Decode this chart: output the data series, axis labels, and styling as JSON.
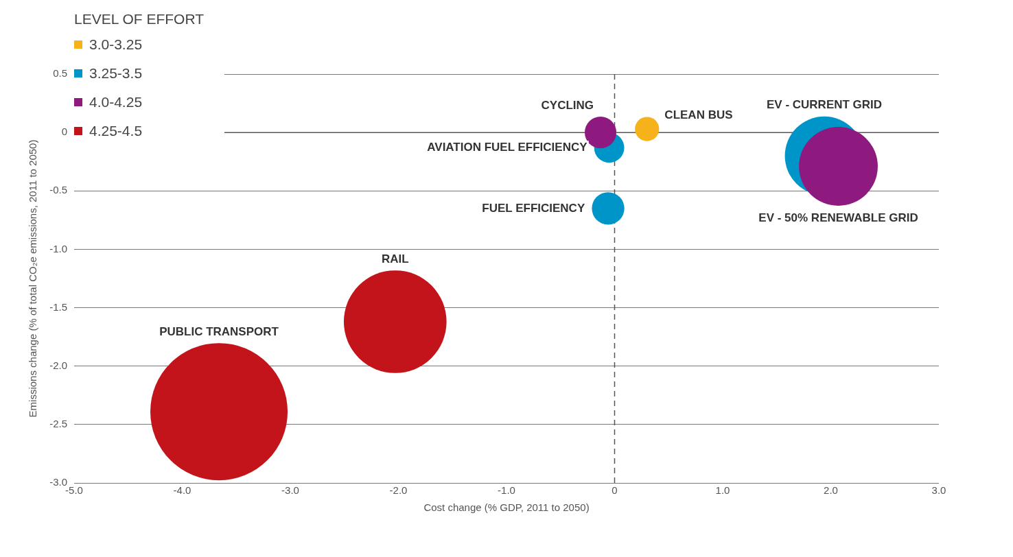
{
  "chart_data": {
    "type": "bubble",
    "xlabel": "Cost change (% GDP, 2011 to 2050)",
    "ylabel": "Emissions change (% of total CO₂e emissions, 2011 to 2050)",
    "legend_title": "LEVEL OF EFFORT",
    "legend": "top left",
    "grid": "y",
    "xlim": [
      -5,
      3
    ],
    "ylim": [
      -3,
      0.5
    ],
    "xticks": [
      {
        "value": -5,
        "label": "-5.0"
      },
      {
        "value": -4,
        "label": "-4.0"
      },
      {
        "value": -3,
        "label": "-3.0"
      },
      {
        "value": -2,
        "label": "-2.0"
      },
      {
        "value": -1,
        "label": "-1.0"
      },
      0,
      {
        "value": 1,
        "label": "1.0"
      },
      {
        "value": 2,
        "label": "2.0"
      },
      {
        "value": 3,
        "label": "3.0"
      }
    ],
    "yticks": [
      {
        "value": -3,
        "label": "-3.0"
      },
      -2.5,
      {
        "value": -2,
        "label": "-2.0"
      },
      -1.5,
      {
        "value": -1,
        "label": "-1.0"
      },
      -0.5,
      0,
      0.5
    ],
    "ref_lines": [
      {
        "axis": "x",
        "value": 0,
        "color": "#555555",
        "line_style": "dashed"
      },
      {
        "axis": "y",
        "value": 0,
        "color": "#555555",
        "line_style": "solid"
      }
    ],
    "series": [
      {
        "name": "3.0-3.25",
        "color": "#f5b21b",
        "x": [
          0.3
        ],
        "values": [
          0.03
        ],
        "sizes": [
          0.031
        ]
      },
      {
        "name": "3.25-3.5",
        "color": "#0095c8",
        "x": [
          -0.05,
          -0.06,
          1.94
        ],
        "values": [
          -0.13,
          -0.65,
          -0.2
        ],
        "sizes": [
          0.048,
          0.056,
          0.33
        ]
      },
      {
        "name": "4.0-4.25",
        "color": "#8e1a80",
        "x": [
          -0.13,
          2.07
        ],
        "values": [
          0,
          -0.29
        ],
        "sizes": [
          0.053,
          0.33
        ]
      },
      {
        "name": "4.25-4.5",
        "color": "#c3141b",
        "x": [
          -2.03,
          -3.66
        ],
        "values": [
          -1.62,
          -2.39
        ],
        "sizes": [
          0.56,
          1
        ]
      }
    ],
    "annotations": [
      "CYCLING",
      "CLEAN BUS",
      "EV - CURRENT GRID",
      "AVIATION FUEL EFFICIENCY",
      "FUEL EFFICIENCY",
      "EV - 50% RENEWABLE GRID",
      "RAIL",
      "PUBLIC TRANSPORT"
    ]
  }
}
